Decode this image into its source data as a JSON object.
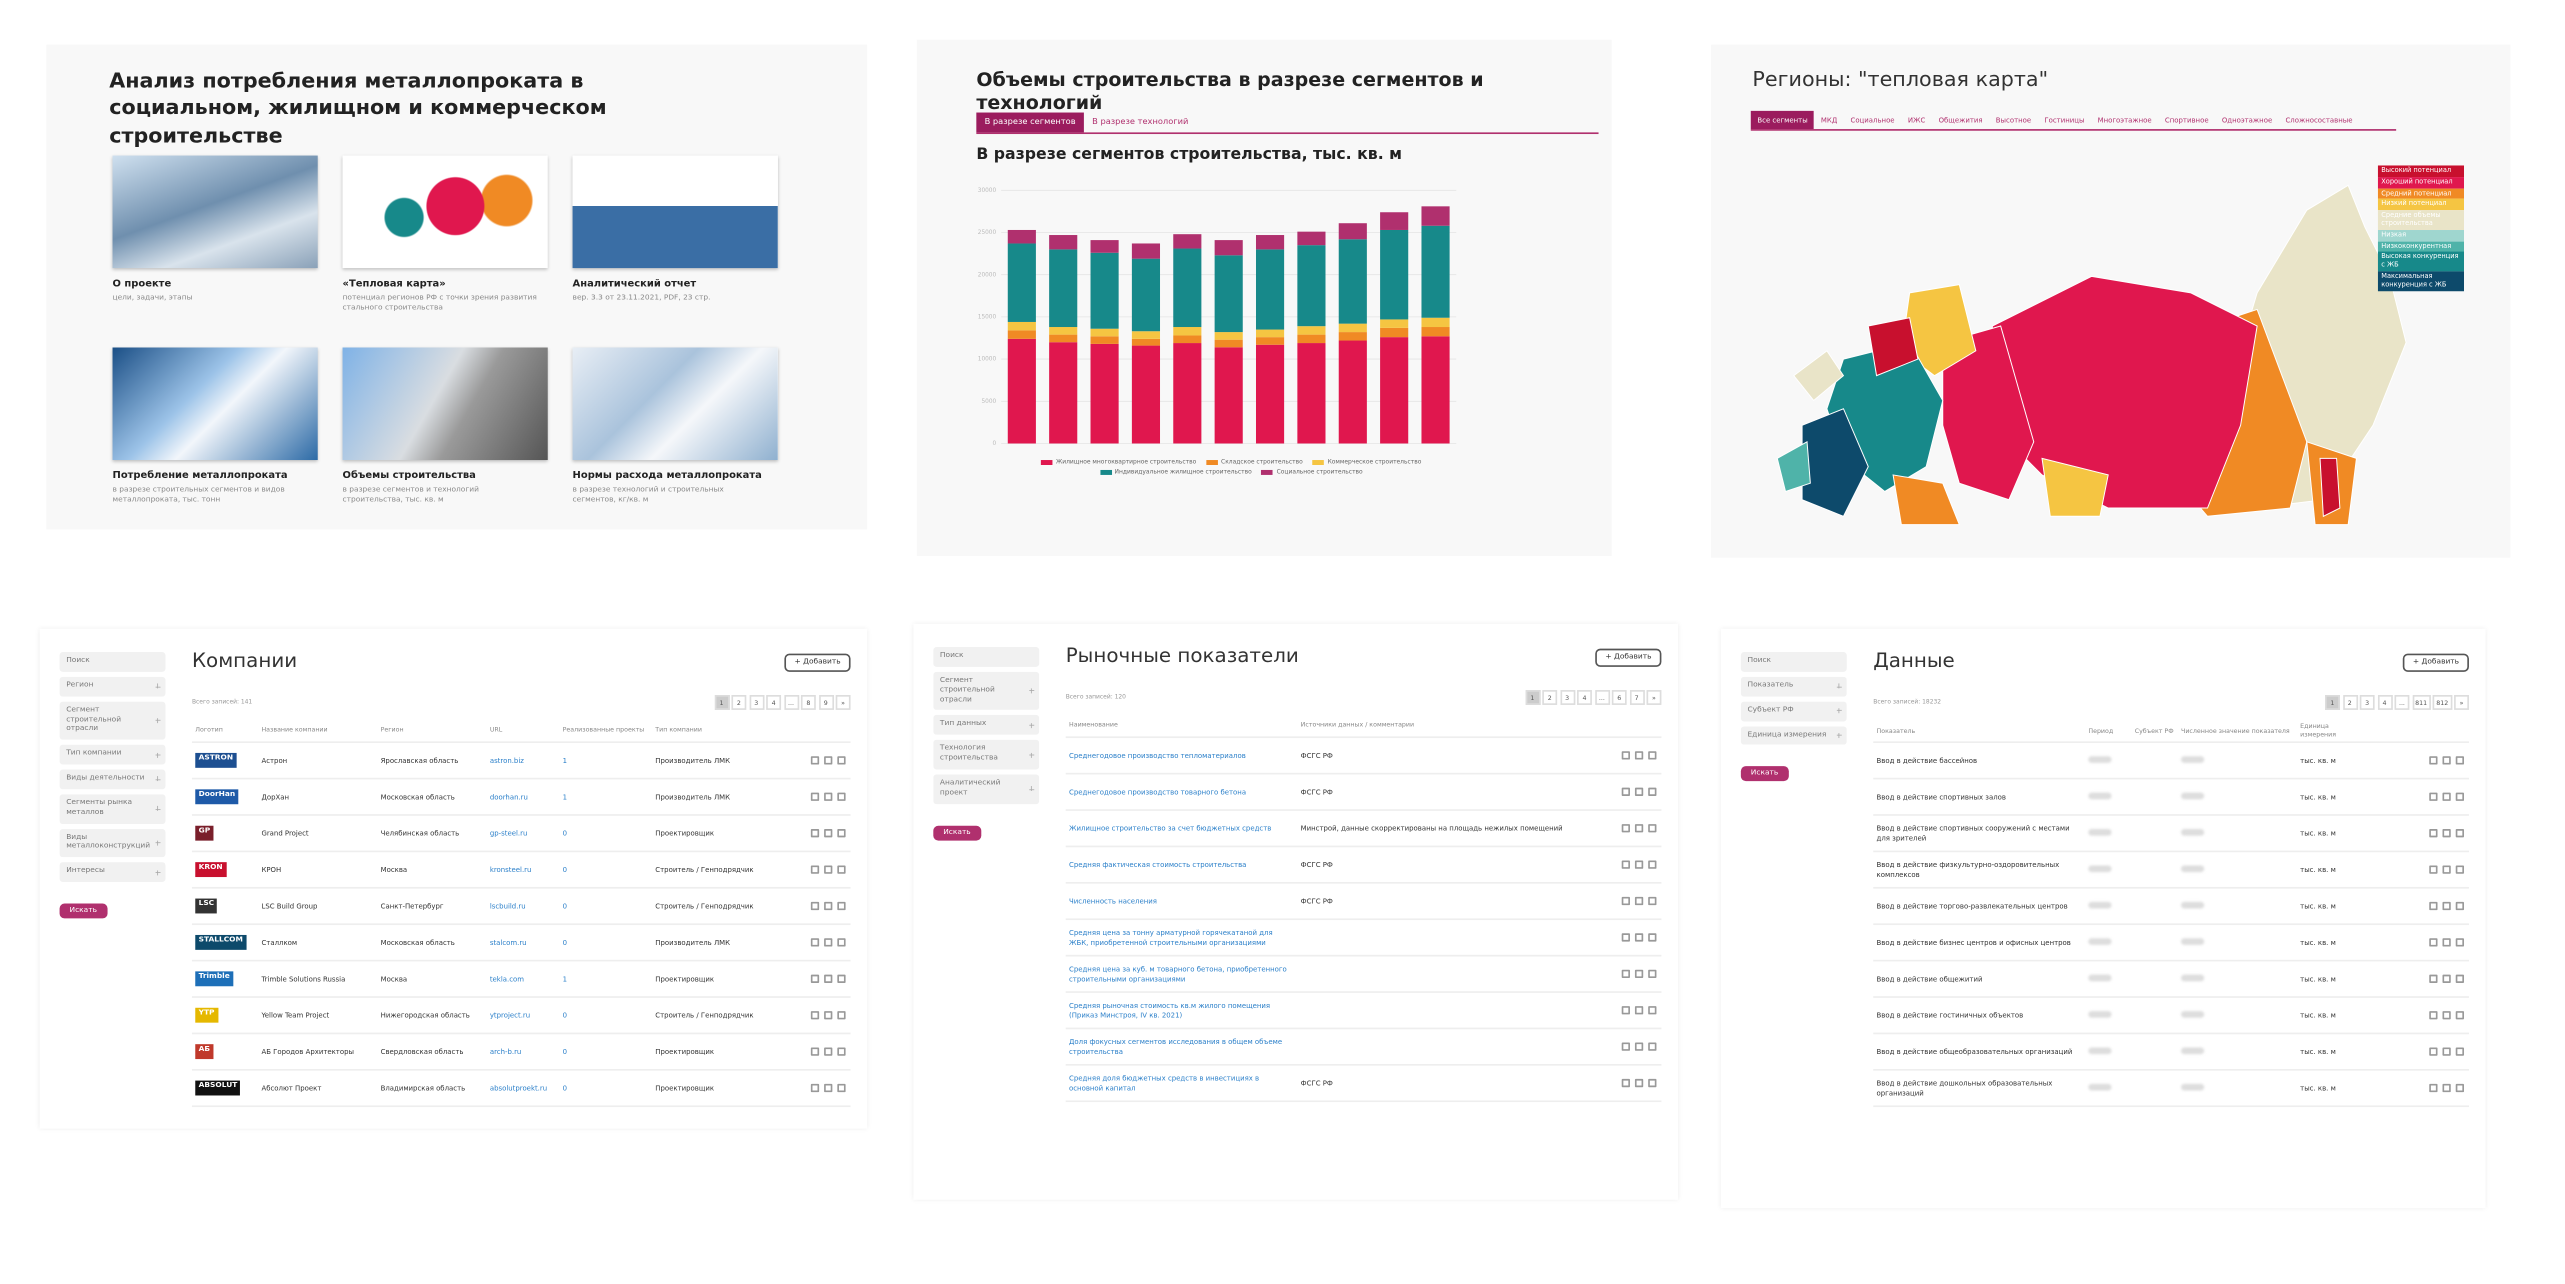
{
  "home": {
    "title": "Анализ потребления металлопроката в социальном, жилищном и коммерческом строительстве",
    "cards": [
      {
        "title": "О проекте",
        "text": "цели, задачи, этапы"
      },
      {
        "title": "«Тепловая карта»",
        "text": "потенциал регионов РФ с точки зрения развития стального строительства"
      },
      {
        "title": "Аналитический отчет",
        "text": "вер. 3.3 от 23.11.2021, PDF, 23 стр."
      },
      {
        "title": "Потребление металлопроката",
        "text": "в разрезе строительных сегментов и видов металлопроката, тыс. тонн"
      },
      {
        "title": "Объемы строительства",
        "text": "в разрезе сегментов и технологий строительства, тыс. кв. м"
      },
      {
        "title": "Нормы расхода металлопроката",
        "text": "в разрезе технологий и строительных сегментов, кг/кв. м"
      }
    ]
  },
  "volumes": {
    "title": "Объемы строительства в разрезе сегментов и технологий",
    "tabs": [
      "В разрезе сегментов",
      "В разрезе технологий"
    ]
  },
  "chart_data": {
    "type": "bar",
    "title": "В разрезе сегментов строительства, тыс. кв. м",
    "stacked": true,
    "grid": true,
    "categories": [
      null,
      null,
      null,
      null,
      null,
      null,
      null,
      null,
      null,
      null,
      null
    ],
    "ylim": [
      0,
      30000
    ],
    "yticks": [
      0,
      5000,
      10000,
      15000,
      20000,
      25000,
      30000
    ],
    "series": [
      {
        "name": "Жилищное многоквартирное строительство",
        "color": "#e0174e",
        "values": [
          12400,
          12000,
          11800,
          11600,
          11900,
          11400,
          11700,
          11900,
          12200,
          12600,
          12700
        ]
      },
      {
        "name": "Складское строительство",
        "color": "#f08a24",
        "values": [
          1000,
          900,
          900,
          800,
          900,
          900,
          900,
          1000,
          1000,
          1100,
          1100
        ]
      },
      {
        "name": "Коммерческое строительство",
        "color": "#f5c542",
        "values": [
          1000,
          900,
          900,
          900,
          1000,
          900,
          900,
          1000,
          1000,
          1000,
          1100
        ]
      },
      {
        "name": "Индивидуальное жилищное строительство",
        "color": "#17898a",
        "values": [
          9300,
          9200,
          9000,
          8600,
          9300,
          9100,
          9500,
          9600,
          10000,
          10600,
          10900
        ]
      },
      {
        "name": "Социальное строительство",
        "color": "#b0306e",
        "values": [
          1600,
          1700,
          1500,
          1800,
          1700,
          1800,
          1700,
          1600,
          1900,
          2100,
          2300
        ]
      }
    ]
  },
  "heatmap": {
    "title": "Регионы: \"тепловая карта\"",
    "tabs": [
      "Все сегменты",
      "МКД",
      "Социальное",
      "ИЖС",
      "Общежития",
      "Высотное",
      "Гостиницы",
      "Многоэтажное",
      "Спортивное",
      "Одноэтажное",
      "Сложносоставные"
    ],
    "legend": [
      {
        "label": "Высокий потенциал",
        "color": "#c8102e"
      },
      {
        "label": "Хороший потенциал",
        "color": "#e0174e"
      },
      {
        "label": "Средний потенциал",
        "color": "#f08a24"
      },
      {
        "label": "Низкий потенциал",
        "color": "#f5c542"
      },
      {
        "label": "Средние объемы строительства",
        "color": "#e9e4c8"
      },
      {
        "label": "Низкая",
        "color": "#9fd6cf"
      },
      {
        "label": "Низкоконкурентная",
        "color": "#4fb3a9"
      },
      {
        "label": "Высокая конкуренция с ЖБ",
        "color": "#17898a"
      },
      {
        "label": "Максимальная конкуренция с ЖБ",
        "color": "#0d4a6b"
      }
    ]
  },
  "companies": {
    "title": "Компании",
    "add": "+ Добавить",
    "filters": [
      "Поиск",
      "Регион",
      "Сегмент строительной отрасли",
      "Тип компании",
      "Виды деятельности",
      "Сегменты рынка металлов",
      "Виды металлоконструкций",
      "Интересы"
    ],
    "search": "Искать",
    "count": "Всего записей: 141",
    "pages": [
      "1",
      "2",
      "3",
      "4",
      "...",
      "8",
      "9",
      "»"
    ],
    "columns": [
      "Логотип",
      "Название компании",
      "Регион",
      "URL",
      "Реализованные проекты",
      "Тип компании"
    ],
    "rows": [
      [
        "ASTRON",
        "Астрон",
        "Ярославская область",
        "astron.biz",
        "1",
        "Производитель ЛМК"
      ],
      [
        "DoorHan",
        "ДорХан",
        "Московская область",
        "doorhan.ru",
        "1",
        "Производитель ЛМК"
      ],
      [
        "GP",
        "Grand Project",
        "Челябинская область",
        "gp-steel.ru",
        "0",
        "Проектировщик"
      ],
      [
        "KRON",
        "КРОН",
        "Москва",
        "kronsteel.ru",
        "0",
        "Строитель / Генподрядчик"
      ],
      [
        "LSC",
        "LSC Build Group",
        "Санкт-Петербург",
        "lscbuild.ru",
        "0",
        "Строитель / Генподрядчик"
      ],
      [
        "STALLCOM",
        "Сталлком",
        "Московская область",
        "stalcom.ru",
        "0",
        "Производитель ЛМК"
      ],
      [
        "Trimble",
        "Trimble Solutions Russia",
        "Москва",
        "tekla.com",
        "1",
        "Проектировщик"
      ],
      [
        "YTP",
        "Yellow Team Project",
        "Нижегородская область",
        "ytproject.ru",
        "0",
        "Строитель / Генподрядчик"
      ],
      [
        "АБ",
        "АБ Городов Архитекторы",
        "Свердловская область",
        "arch-b.ru",
        "0",
        "Проектировщик"
      ],
      [
        "ABSOLUT",
        "Абсолют Проект",
        "Владимирская область",
        "absolutproekt.ru",
        "0",
        "Проектировщик"
      ]
    ]
  },
  "market": {
    "title": "Рыночные показатели",
    "add": "+ Добавить",
    "filters": [
      "Поиск",
      "Сегмент строительной отрасли",
      "Тип данных",
      "Технология строительства",
      "Аналитический проект"
    ],
    "search": "Искать",
    "count": "Всего записей: 120",
    "pages": [
      "1",
      "2",
      "3",
      "4",
      "...",
      "6",
      "7",
      "»"
    ],
    "columns": [
      "Наименование",
      "Источники данных / комментарии"
    ],
    "rows": [
      [
        "Среднегодовое производство тепломатериалов",
        "ФСГС РФ"
      ],
      [
        "Среднегодовое производство товарного бетона",
        "ФСГС РФ"
      ],
      [
        "Жилищное строительство за счет бюджетных средств",
        "Минстрой, данные скорректированы на площадь нежилых помещений"
      ],
      [
        "Средняя фактическая стоимость строительства",
        "ФСГС РФ"
      ],
      [
        "Численность населения",
        "ФСГС РФ"
      ],
      [
        "Средняя цена за тонну арматурной горячекатаной для ЖБК, приобретенной строительными организациями"
      ],
      [
        "Средняя цена за куб. м товарного бетона, приобретенного строительными организациями"
      ],
      [
        "Средняя рыночная стоимость кв.м жилого помещения (Приказ Минстроя, IV кв. 2021)"
      ],
      [
        "Доля фокусных сегментов исследования в общем объеме строительства"
      ],
      [
        "Средняя доля бюджетных средств в инвестициях в основной капитал",
        "ФСГС РФ"
      ]
    ]
  },
  "datasets": {
    "title": "Данные",
    "add": "+ Добавить",
    "filters": [
      "Поиск",
      "Показатель",
      "Субъект РФ",
      "Единица измерения"
    ],
    "search": "Искать",
    "count": "Всего записей: 18232",
    "pages": [
      "1",
      "2",
      "3",
      "4",
      "...",
      "811",
      "812",
      "»"
    ],
    "columns": [
      "Показатель",
      "Период",
      "Субъект РФ",
      "Численное значение показателя",
      "Единица измерения"
    ],
    "rows": [
      [
        "Ввод в действие бассейнов",
        "тыс. кв. м"
      ],
      [
        "Ввод в действие спортивных залов",
        "тыс. кв. м"
      ],
      [
        "Ввод в действие спортивных сооружений с местами для зрителей",
        "тыс. кв. м"
      ],
      [
        "Ввод в действие физкультурно-оздоровительных комплексов",
        "тыс. кв. м"
      ],
      [
        "Ввод в действие торгово-развлекательных центров",
        "тыс. кв. м"
      ],
      [
        "Ввод в действие бизнес центров и офисных центров",
        "тыс. кв. м"
      ],
      [
        "Ввод в действие общежитий",
        "тыс. кв. м"
      ],
      [
        "Ввод в действие гостиничных объектов",
        "тыс. кв. м"
      ],
      [
        "Ввод в действие общеобразовательных организаций",
        "тыс. кв. м"
      ],
      [
        "Ввод в действие дошкольных образовательных организаций",
        "тыс. кв. м"
      ]
    ]
  }
}
